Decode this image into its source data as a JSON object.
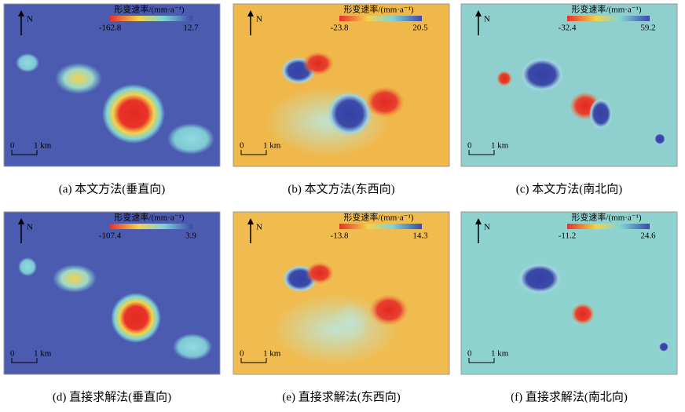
{
  "panels": [
    {
      "caption": "(a) 本文方法(垂直向)",
      "colorbar": {
        "title": "形变速率/(mm·a⁻¹)",
        "min": "-162.8",
        "max": "12.7"
      },
      "north": "N",
      "scale": {
        "zero": "0",
        "label": "1 km"
      }
    },
    {
      "caption": "(b) 本文方法(东西向)",
      "colorbar": {
        "title": "形变速率/(mm·a⁻¹)",
        "min": "-23.8",
        "max": "20.5"
      },
      "north": "N",
      "scale": {
        "zero": "0",
        "label": "1 km"
      }
    },
    {
      "caption": "(c) 本文方法(南北向)",
      "colorbar": {
        "title": "形变速率/(mm·a⁻¹)",
        "min": "-32.4",
        "max": "59.2"
      },
      "north": "N",
      "scale": {
        "zero": "0",
        "label": "1 km"
      }
    },
    {
      "caption": "(d) 直接求解法(垂直向)",
      "colorbar": {
        "title": "形变速率/(mm·a⁻¹)",
        "min": "-107.4",
        "max": "3.9"
      },
      "north": "N",
      "scale": {
        "zero": "0",
        "label": "1 km"
      }
    },
    {
      "caption": "(e) 直接求解法(东西向)",
      "colorbar": {
        "title": "形变速率/(mm·a⁻¹)",
        "min": "-13.8",
        "max": "14.3"
      },
      "north": "N",
      "scale": {
        "zero": "0",
        "label": "1 km"
      }
    },
    {
      "caption": "(f) 直接求解法(南北向)",
      "colorbar": {
        "title": "形变速率/(mm·a⁻¹)",
        "min": "-11.2",
        "max": "24.6"
      },
      "north": "N",
      "scale": {
        "zero": "0",
        "label": "1 km"
      }
    }
  ]
}
